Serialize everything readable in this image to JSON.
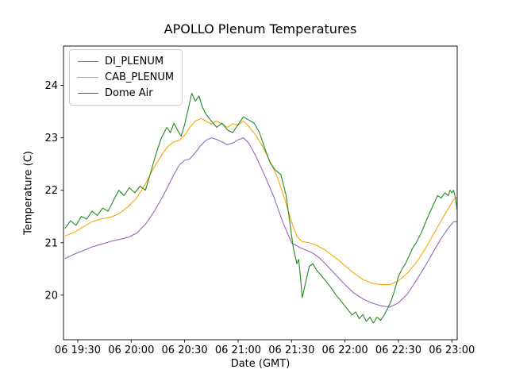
{
  "chart_data": {
    "type": "line",
    "title": "APOLLO Plenum Temperatures",
    "xlabel": "Date (GMT)",
    "ylabel": "Temperature (C)",
    "grid": false,
    "legend_position": "upper left",
    "x_unit": "minutes after 00:00 on day 06 (GMT)",
    "x_domain": [
      1162,
      1383
    ],
    "y_domain": [
      19.15,
      24.75
    ],
    "yticks": [
      20,
      21,
      22,
      23,
      24
    ],
    "xticks": [
      {
        "m": 1170,
        "label": "06 19:30"
      },
      {
        "m": 1200,
        "label": "06 20:00"
      },
      {
        "m": 1230,
        "label": "06 20:30"
      },
      {
        "m": 1260,
        "label": "06 21:00"
      },
      {
        "m": 1290,
        "label": "06 21:30"
      },
      {
        "m": 1320,
        "label": "06 22:00"
      },
      {
        "m": 1350,
        "label": "06 22:30"
      },
      {
        "m": 1380,
        "label": "06 23:00"
      }
    ],
    "series": [
      {
        "name": "DI_PLENUM",
        "color": "#9467bd",
        "points": [
          [
            1163,
            20.7
          ],
          [
            1168,
            20.78
          ],
          [
            1173,
            20.85
          ],
          [
            1178,
            20.92
          ],
          [
            1183,
            20.97
          ],
          [
            1188,
            21.02
          ],
          [
            1193,
            21.06
          ],
          [
            1198,
            21.1
          ],
          [
            1203,
            21.18
          ],
          [
            1208,
            21.35
          ],
          [
            1213,
            21.6
          ],
          [
            1218,
            21.9
          ],
          [
            1221,
            22.1
          ],
          [
            1224,
            22.3
          ],
          [
            1227,
            22.48
          ],
          [
            1230,
            22.57
          ],
          [
            1233,
            22.6
          ],
          [
            1236,
            22.72
          ],
          [
            1239,
            22.85
          ],
          [
            1242,
            22.95
          ],
          [
            1245,
            23.0
          ],
          [
            1248,
            22.97
          ],
          [
            1251,
            22.92
          ],
          [
            1254,
            22.87
          ],
          [
            1257,
            22.9
          ],
          [
            1260,
            22.96
          ],
          [
            1263,
            23.0
          ],
          [
            1266,
            22.9
          ],
          [
            1270,
            22.65
          ],
          [
            1275,
            22.28
          ],
          [
            1280,
            21.88
          ],
          [
            1285,
            21.4
          ],
          [
            1290,
            21.0
          ],
          [
            1294,
            20.92
          ],
          [
            1298,
            20.86
          ],
          [
            1302,
            20.8
          ],
          [
            1306,
            20.7
          ],
          [
            1310,
            20.56
          ],
          [
            1315,
            20.38
          ],
          [
            1320,
            20.2
          ],
          [
            1325,
            20.04
          ],
          [
            1330,
            19.93
          ],
          [
            1335,
            19.85
          ],
          [
            1340,
            19.8
          ],
          [
            1345,
            19.77
          ],
          [
            1350,
            19.85
          ],
          [
            1355,
            20.02
          ],
          [
            1360,
            20.28
          ],
          [
            1365,
            20.55
          ],
          [
            1370,
            20.85
          ],
          [
            1374,
            21.08
          ],
          [
            1378,
            21.28
          ],
          [
            1381,
            21.4
          ],
          [
            1383,
            21.4
          ]
        ]
      },
      {
        "name": "CAB_PLENUM",
        "color": "#ffa500",
        "points": [
          [
            1163,
            21.13
          ],
          [
            1168,
            21.2
          ],
          [
            1173,
            21.3
          ],
          [
            1178,
            21.4
          ],
          [
            1183,
            21.45
          ],
          [
            1188,
            21.48
          ],
          [
            1193,
            21.55
          ],
          [
            1198,
            21.68
          ],
          [
            1203,
            21.85
          ],
          [
            1208,
            22.12
          ],
          [
            1213,
            22.45
          ],
          [
            1218,
            22.72
          ],
          [
            1221,
            22.85
          ],
          [
            1224,
            22.92
          ],
          [
            1227,
            22.95
          ],
          [
            1230,
            23.05
          ],
          [
            1233,
            23.2
          ],
          [
            1236,
            23.32
          ],
          [
            1239,
            23.37
          ],
          [
            1242,
            23.32
          ],
          [
            1245,
            23.26
          ],
          [
            1248,
            23.32
          ],
          [
            1251,
            23.26
          ],
          [
            1254,
            23.2
          ],
          [
            1257,
            23.27
          ],
          [
            1260,
            23.24
          ],
          [
            1263,
            23.32
          ],
          [
            1266,
            23.22
          ],
          [
            1270,
            23.05
          ],
          [
            1274,
            22.82
          ],
          [
            1278,
            22.55
          ],
          [
            1282,
            22.25
          ],
          [
            1286,
            21.85
          ],
          [
            1290,
            21.4
          ],
          [
            1293,
            21.12
          ],
          [
            1296,
            21.02
          ],
          [
            1300,
            21.0
          ],
          [
            1304,
            20.95
          ],
          [
            1308,
            20.88
          ],
          [
            1312,
            20.78
          ],
          [
            1316,
            20.68
          ],
          [
            1320,
            20.56
          ],
          [
            1325,
            20.42
          ],
          [
            1330,
            20.3
          ],
          [
            1335,
            20.23
          ],
          [
            1340,
            20.2
          ],
          [
            1345,
            20.2
          ],
          [
            1350,
            20.27
          ],
          [
            1355,
            20.42
          ],
          [
            1360,
            20.62
          ],
          [
            1365,
            20.88
          ],
          [
            1370,
            21.18
          ],
          [
            1374,
            21.42
          ],
          [
            1378,
            21.65
          ],
          [
            1381,
            21.82
          ],
          [
            1383,
            21.87
          ]
        ]
      },
      {
        "name": "Dome Air",
        "color": "#228b22",
        "points": [
          [
            1163,
            21.28
          ],
          [
            1166,
            21.42
          ],
          [
            1169,
            21.33
          ],
          [
            1172,
            21.5
          ],
          [
            1175,
            21.45
          ],
          [
            1178,
            21.6
          ],
          [
            1181,
            21.52
          ],
          [
            1184,
            21.66
          ],
          [
            1187,
            21.6
          ],
          [
            1190,
            21.8
          ],
          [
            1193,
            22.0
          ],
          [
            1196,
            21.9
          ],
          [
            1199,
            22.05
          ],
          [
            1202,
            21.95
          ],
          [
            1205,
            22.08
          ],
          [
            1208,
            22.0
          ],
          [
            1211,
            22.35
          ],
          [
            1214,
            22.7
          ],
          [
            1217,
            23.0
          ],
          [
            1220,
            23.2
          ],
          [
            1222,
            23.1
          ],
          [
            1224,
            23.28
          ],
          [
            1226,
            23.15
          ],
          [
            1228,
            23.03
          ],
          [
            1230,
            23.25
          ],
          [
            1232,
            23.55
          ],
          [
            1234,
            23.85
          ],
          [
            1236,
            23.7
          ],
          [
            1238,
            23.8
          ],
          [
            1240,
            23.58
          ],
          [
            1242,
            23.45
          ],
          [
            1245,
            23.32
          ],
          [
            1248,
            23.2
          ],
          [
            1251,
            23.28
          ],
          [
            1254,
            23.15
          ],
          [
            1257,
            23.1
          ],
          [
            1260,
            23.25
          ],
          [
            1263,
            23.4
          ],
          [
            1266,
            23.34
          ],
          [
            1269,
            23.28
          ],
          [
            1272,
            23.1
          ],
          [
            1275,
            22.8
          ],
          [
            1278,
            22.52
          ],
          [
            1281,
            22.38
          ],
          [
            1284,
            22.3
          ],
          [
            1287,
            21.9
          ],
          [
            1289,
            21.4
          ],
          [
            1291,
            20.9
          ],
          [
            1293,
            20.6
          ],
          [
            1294,
            20.68
          ],
          [
            1295,
            20.35
          ],
          [
            1296,
            19.95
          ],
          [
            1298,
            20.25
          ],
          [
            1300,
            20.55
          ],
          [
            1302,
            20.6
          ],
          [
            1304,
            20.48
          ],
          [
            1306,
            20.4
          ],
          [
            1309,
            20.28
          ],
          [
            1312,
            20.15
          ],
          [
            1315,
            20.0
          ],
          [
            1318,
            19.88
          ],
          [
            1321,
            19.75
          ],
          [
            1324,
            19.62
          ],
          [
            1326,
            19.68
          ],
          [
            1328,
            19.55
          ],
          [
            1330,
            19.63
          ],
          [
            1332,
            19.5
          ],
          [
            1334,
            19.58
          ],
          [
            1336,
            19.47
          ],
          [
            1338,
            19.58
          ],
          [
            1340,
            19.52
          ],
          [
            1342,
            19.62
          ],
          [
            1344,
            19.75
          ],
          [
            1346,
            19.9
          ],
          [
            1348,
            20.1
          ],
          [
            1350,
            20.35
          ],
          [
            1352,
            20.5
          ],
          [
            1354,
            20.6
          ],
          [
            1356,
            20.75
          ],
          [
            1358,
            20.9
          ],
          [
            1360,
            21.0
          ],
          [
            1363,
            21.2
          ],
          [
            1366,
            21.45
          ],
          [
            1368,
            21.6
          ],
          [
            1370,
            21.75
          ],
          [
            1372,
            21.9
          ],
          [
            1374,
            21.85
          ],
          [
            1376,
            21.95
          ],
          [
            1378,
            21.9
          ],
          [
            1379,
            22.0
          ],
          [
            1380,
            21.95
          ],
          [
            1381,
            22.0
          ],
          [
            1382,
            21.85
          ],
          [
            1383,
            21.62
          ]
        ]
      }
    ]
  }
}
